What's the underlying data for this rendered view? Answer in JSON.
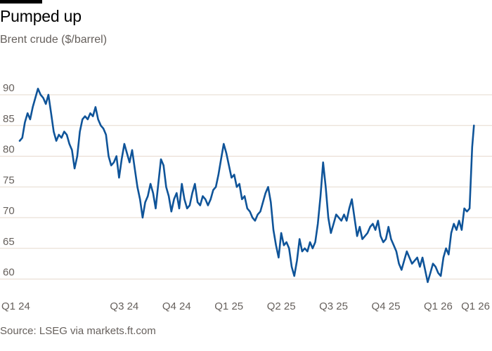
{
  "header": {
    "title": "Pumped up",
    "subtitle": "Brent crude ($/barrel)"
  },
  "footer": {
    "source": "Source: LSEG via markets.ft.com"
  },
  "colors": {
    "line": "#0f5499",
    "grid": "#e6d9ce",
    "text": "#66605c",
    "title": "#000000"
  },
  "chart_data": {
    "type": "line",
    "title": "Pumped up",
    "subtitle": "Brent crude ($/barrel)",
    "xlabel": "",
    "ylabel": "",
    "ylim": [
      58,
      94
    ],
    "xlim": [
      0,
      26.2
    ],
    "yticks": [
      60,
      65,
      70,
      75,
      80,
      85,
      90
    ],
    "xticks": [
      {
        "label": "Q1 24",
        "x": 0
      },
      {
        "label": "Q3 24",
        "x": 6
      },
      {
        "label": "Q4 24",
        "x": 9
      },
      {
        "label": "Q1 25",
        "x": 12
      },
      {
        "label": "Q2 25",
        "x": 15
      },
      {
        "label": "Q3 25",
        "x": 18
      },
      {
        "label": "Q4 25",
        "x": 21
      },
      {
        "label": "Q1 26",
        "x": 24
      },
      {
        "label": "Q1 26",
        "x": 26
      }
    ],
    "series": [
      {
        "name": "Brent crude",
        "x": [
          0,
          0.15,
          0.3,
          0.45,
          0.6,
          0.75,
          0.9,
          1.05,
          1.2,
          1.35,
          1.5,
          1.65,
          1.8,
          1.95,
          2.1,
          2.25,
          2.4,
          2.55,
          2.7,
          2.85,
          3.0,
          3.15,
          3.3,
          3.45,
          3.6,
          3.75,
          3.9,
          4.05,
          4.2,
          4.35,
          4.5,
          4.65,
          4.8,
          4.95,
          5.1,
          5.25,
          5.4,
          5.55,
          5.7,
          5.85,
          6.0,
          6.15,
          6.3,
          6.45,
          6.6,
          6.75,
          6.9,
          7.05,
          7.2,
          7.35,
          7.5,
          7.65,
          7.8,
          7.95,
          8.1,
          8.25,
          8.4,
          8.55,
          8.7,
          8.85,
          9.0,
          9.15,
          9.3,
          9.45,
          9.6,
          9.75,
          9.9,
          10.05,
          10.2,
          10.35,
          10.5,
          10.65,
          10.8,
          10.95,
          11.1,
          11.25,
          11.4,
          11.55,
          11.7,
          11.85,
          12.0,
          12.15,
          12.3,
          12.45,
          12.6,
          12.75,
          12.9,
          13.05,
          13.2,
          13.35,
          13.5,
          13.65,
          13.8,
          13.95,
          14.1,
          14.25,
          14.4,
          14.55,
          14.7,
          14.85,
          15.0,
          15.15,
          15.3,
          15.45,
          15.6,
          15.75,
          15.9,
          16.05,
          16.2,
          16.35,
          16.5,
          16.65,
          16.8,
          16.95,
          17.1,
          17.25,
          17.4,
          17.55,
          17.7,
          17.85,
          18.0,
          18.15,
          18.3,
          18.45,
          18.6,
          18.75,
          18.9,
          19.05,
          19.2,
          19.35,
          19.5,
          19.65,
          19.8,
          19.95,
          20.1,
          20.25,
          20.4,
          20.55,
          20.7,
          20.85,
          21.0,
          21.15,
          21.3,
          21.45,
          21.6,
          21.75,
          21.9,
          22.05,
          22.2,
          22.35,
          22.5,
          22.65,
          22.8,
          22.95,
          23.1,
          23.25,
          23.4,
          23.55,
          23.7,
          23.85,
          24.0,
          24.15,
          24.3,
          24.45,
          24.6,
          24.75,
          24.9,
          25.05,
          25.2,
          25.35,
          25.5,
          25.65,
          25.8,
          25.95,
          26.05
        ],
        "values": [
          82.5,
          83.0,
          85.5,
          87.0,
          86.0,
          88.0,
          89.5,
          91.0,
          90.0,
          89.5,
          88.5,
          90.0,
          87.0,
          84.0,
          82.5,
          83.5,
          83.0,
          84.0,
          83.5,
          82.0,
          81.0,
          78.0,
          80.0,
          84.0,
          86.0,
          86.5,
          86.0,
          87.0,
          86.5,
          88.0,
          86.0,
          85.0,
          84.5,
          83.5,
          80.0,
          78.5,
          79.0,
          80.0,
          76.5,
          79.5,
          82.0,
          80.5,
          79.0,
          81.0,
          78.0,
          75.0,
          73.0,
          70.0,
          72.5,
          73.5,
          75.5,
          74.0,
          71.5,
          75.5,
          79.5,
          78.5,
          75.0,
          73.5,
          71.0,
          73.0,
          74.0,
          71.5,
          75.5,
          73.0,
          71.5,
          72.0,
          74.0,
          75.5,
          72.5,
          72.0,
          73.5,
          73.0,
          72.0,
          73.0,
          74.5,
          75.0,
          77.0,
          79.5,
          82.0,
          80.5,
          78.5,
          76.5,
          77.0,
          75.0,
          75.5,
          73.0,
          73.5,
          71.5,
          71.0,
          70.0,
          69.5,
          70.5,
          71.0,
          72.5,
          74.0,
          75.0,
          72.5,
          68.0,
          65.5,
          63.5,
          67.5,
          65.5,
          66.0,
          65.0,
          62.0,
          60.5,
          63.0,
          66.5,
          64.5,
          65.0,
          64.5,
          66.0,
          65.0,
          66.0,
          69.0,
          73.5,
          79.0,
          75.0,
          70.0,
          67.5,
          69.0,
          70.5,
          70.0,
          69.5,
          70.5,
          69.5,
          71.5,
          73.0,
          70.0,
          67.0,
          68.5,
          66.5,
          67.0,
          67.5,
          68.5,
          69.0,
          68.0,
          69.5,
          67.0,
          66.0,
          66.5,
          68.5,
          66.5,
          65.5,
          64.5,
          62.5,
          61.5,
          63.0,
          64.5,
          63.5,
          62.5,
          63.0,
          63.5,
          62.0,
          63.5,
          61.5,
          59.5,
          61.0,
          62.5,
          62.0,
          61.0,
          60.5,
          63.5,
          65.0,
          64.0,
          67.5,
          69.0,
          68.0,
          69.5,
          68.0,
          71.5,
          71.0,
          71.5,
          81.5,
          85.0
        ]
      }
    ]
  }
}
